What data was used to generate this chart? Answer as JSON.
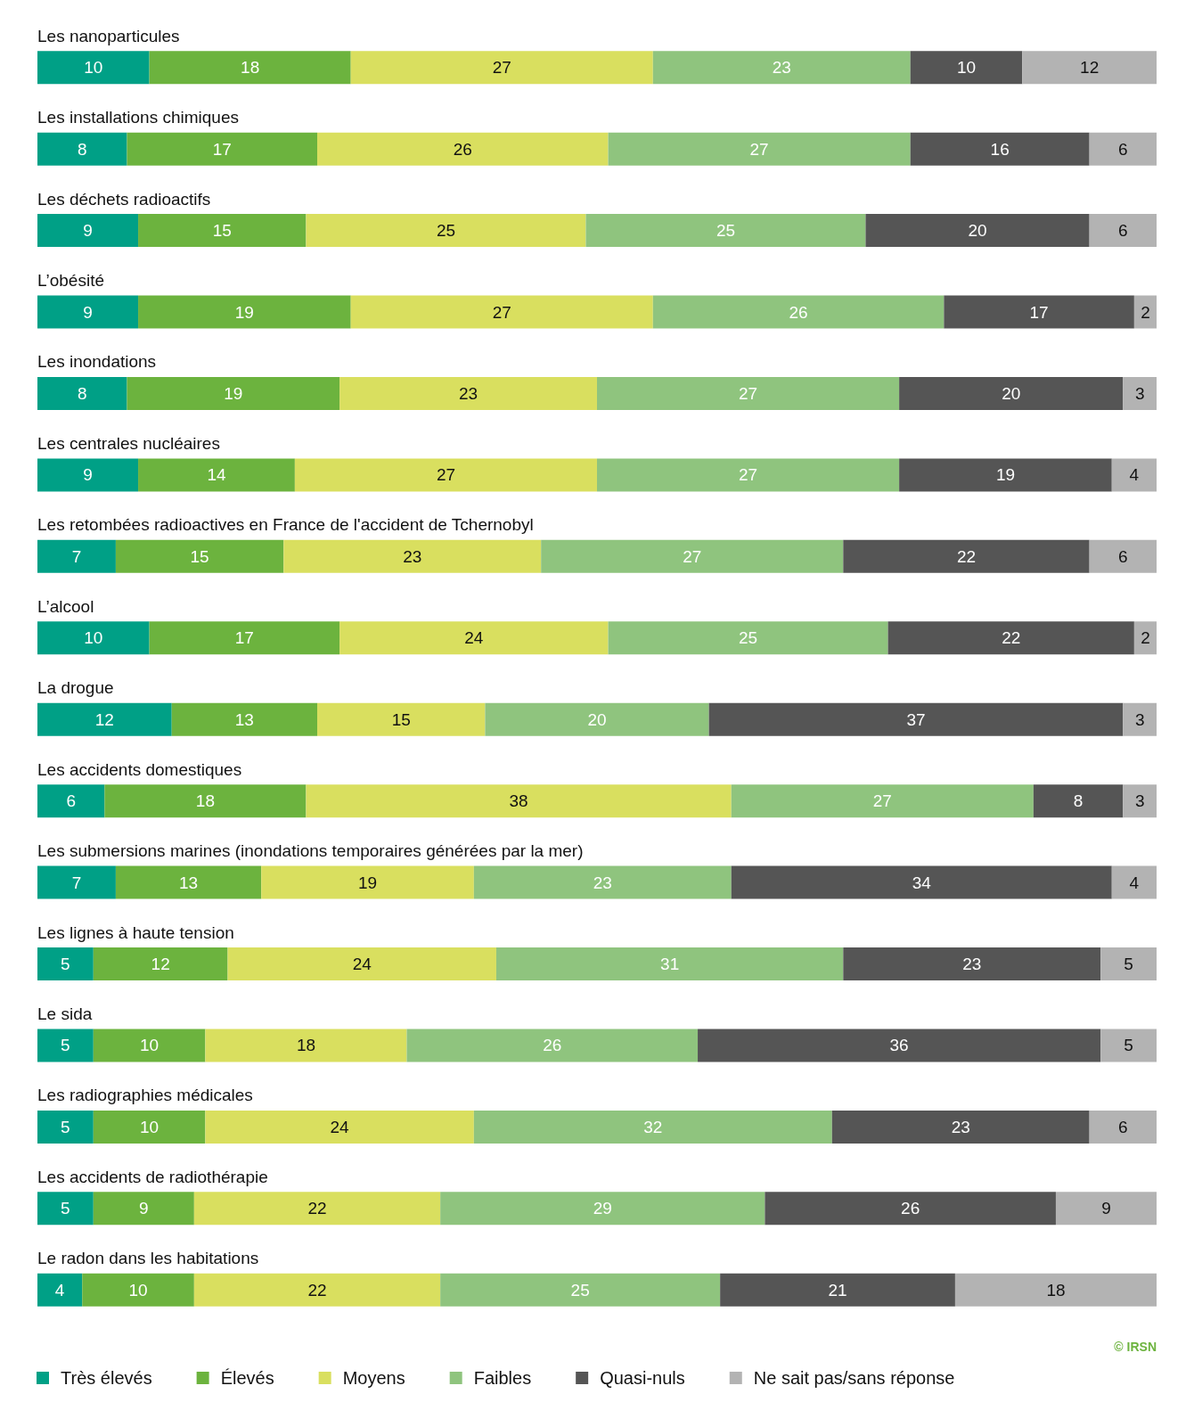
{
  "chart_data": {
    "type": "bar",
    "orientation": "horizontal",
    "stacked": true,
    "data_labels": true,
    "legend": "bottom left",
    "categories": [
      "Les nanoparticules",
      "Les installations chimiques",
      "Les déchets radioactifs",
      "L’obésité",
      "Les inondations",
      "Les centrales nucléaires",
      "Les retombées radioactives en France de l'accident de Tchernobyl",
      "L’alcool",
      "La drogue",
      "Les accidents domestiques",
      "Les submersions marines (inondations temporaires générées par la mer)",
      "Les lignes à haute tension",
      "Le sida",
      "Les radiographies médicales",
      "Les accidents de radiothérapie",
      "Le radon dans les habitations"
    ],
    "series": [
      {
        "name": "Très élevés",
        "color": "#00a086",
        "values": [
          10,
          8,
          9,
          9,
          8,
          9,
          7,
          10,
          12,
          6,
          7,
          5,
          5,
          5,
          5,
          4
        ]
      },
      {
        "name": "Élevés",
        "color": "#6cb33e",
        "values": [
          18,
          17,
          15,
          19,
          19,
          14,
          15,
          17,
          13,
          18,
          13,
          12,
          10,
          10,
          9,
          10
        ]
      },
      {
        "name": "Moyens",
        "color": "#d9df5f",
        "values": [
          27,
          26,
          25,
          27,
          23,
          27,
          23,
          24,
          15,
          38,
          19,
          24,
          18,
          24,
          22,
          22
        ]
      },
      {
        "name": "Faibles",
        "color": "#8fc47e",
        "values": [
          23,
          27,
          25,
          26,
          27,
          27,
          27,
          25,
          20,
          27,
          23,
          31,
          26,
          32,
          29,
          25
        ]
      },
      {
        "name": "Quasi-nuls",
        "color": "#555555",
        "values": [
          10,
          16,
          20,
          17,
          20,
          19,
          22,
          22,
          37,
          8,
          34,
          23,
          36,
          23,
          26,
          21
        ]
      },
      {
        "name": "Ne sait pas/sans réponse",
        "color": "#b3b3b3",
        "values": [
          12,
          6,
          6,
          2,
          3,
          4,
          6,
          2,
          3,
          3,
          4,
          5,
          5,
          6,
          9,
          18
        ]
      }
    ],
    "annotations": [
      "© IRSN"
    ]
  }
}
